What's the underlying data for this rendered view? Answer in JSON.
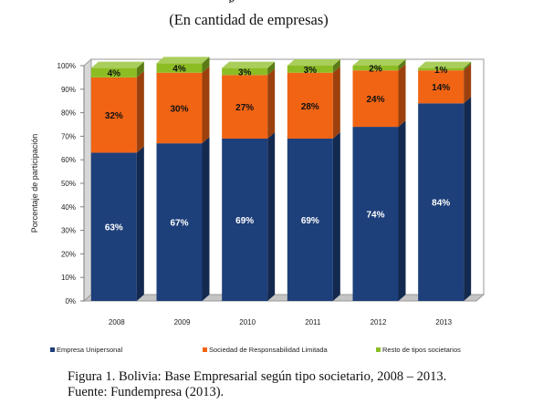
{
  "header": {
    "top_fragment": "g",
    "subtitle": "(En cantidad de empresas)"
  },
  "chart_data": {
    "type": "bar",
    "stacked": true,
    "percent": true,
    "categories": [
      "2008",
      "2009",
      "2010",
      "2011",
      "2012",
      "2013"
    ],
    "series": [
      {
        "name": "Empresa Unipersonal",
        "values": [
          63,
          67,
          69,
          69,
          74,
          84
        ],
        "labels": [
          "63%",
          "67%",
          "69%",
          "69%",
          "74%",
          "84%"
        ],
        "color": "#1d3f7a"
      },
      {
        "name": "Sociedad de Responsabilidad Limitada",
        "values": [
          32,
          30,
          27,
          28,
          24,
          14
        ],
        "labels": [
          "32%",
          "30%",
          "27%",
          "28%",
          "24%",
          "14%"
        ],
        "color": "#f06414"
      },
      {
        "name": "Resto de tipos societarios",
        "values": [
          4,
          4,
          3,
          3,
          2,
          1
        ],
        "labels": [
          "4%",
          "4%",
          "3%",
          "3%",
          "2%",
          "1%"
        ],
        "color": "#8cbd24"
      }
    ],
    "ylabel": "Porcentaje de participación",
    "xlabel": "",
    "ylim": [
      0,
      100
    ],
    "yticks": [
      "0%",
      "10%",
      "20%",
      "30%",
      "40%",
      "50%",
      "60%",
      "70%",
      "80%",
      "90%",
      "100%"
    ],
    "grid": false,
    "legend_position": "bottom",
    "three_d": true
  },
  "caption": {
    "line1": "Figura 1.  Bolivia: Base Empresarial según tipo societario, 2008 – 2013.",
    "line2": "Fuente: Fundempresa (2013)."
  }
}
